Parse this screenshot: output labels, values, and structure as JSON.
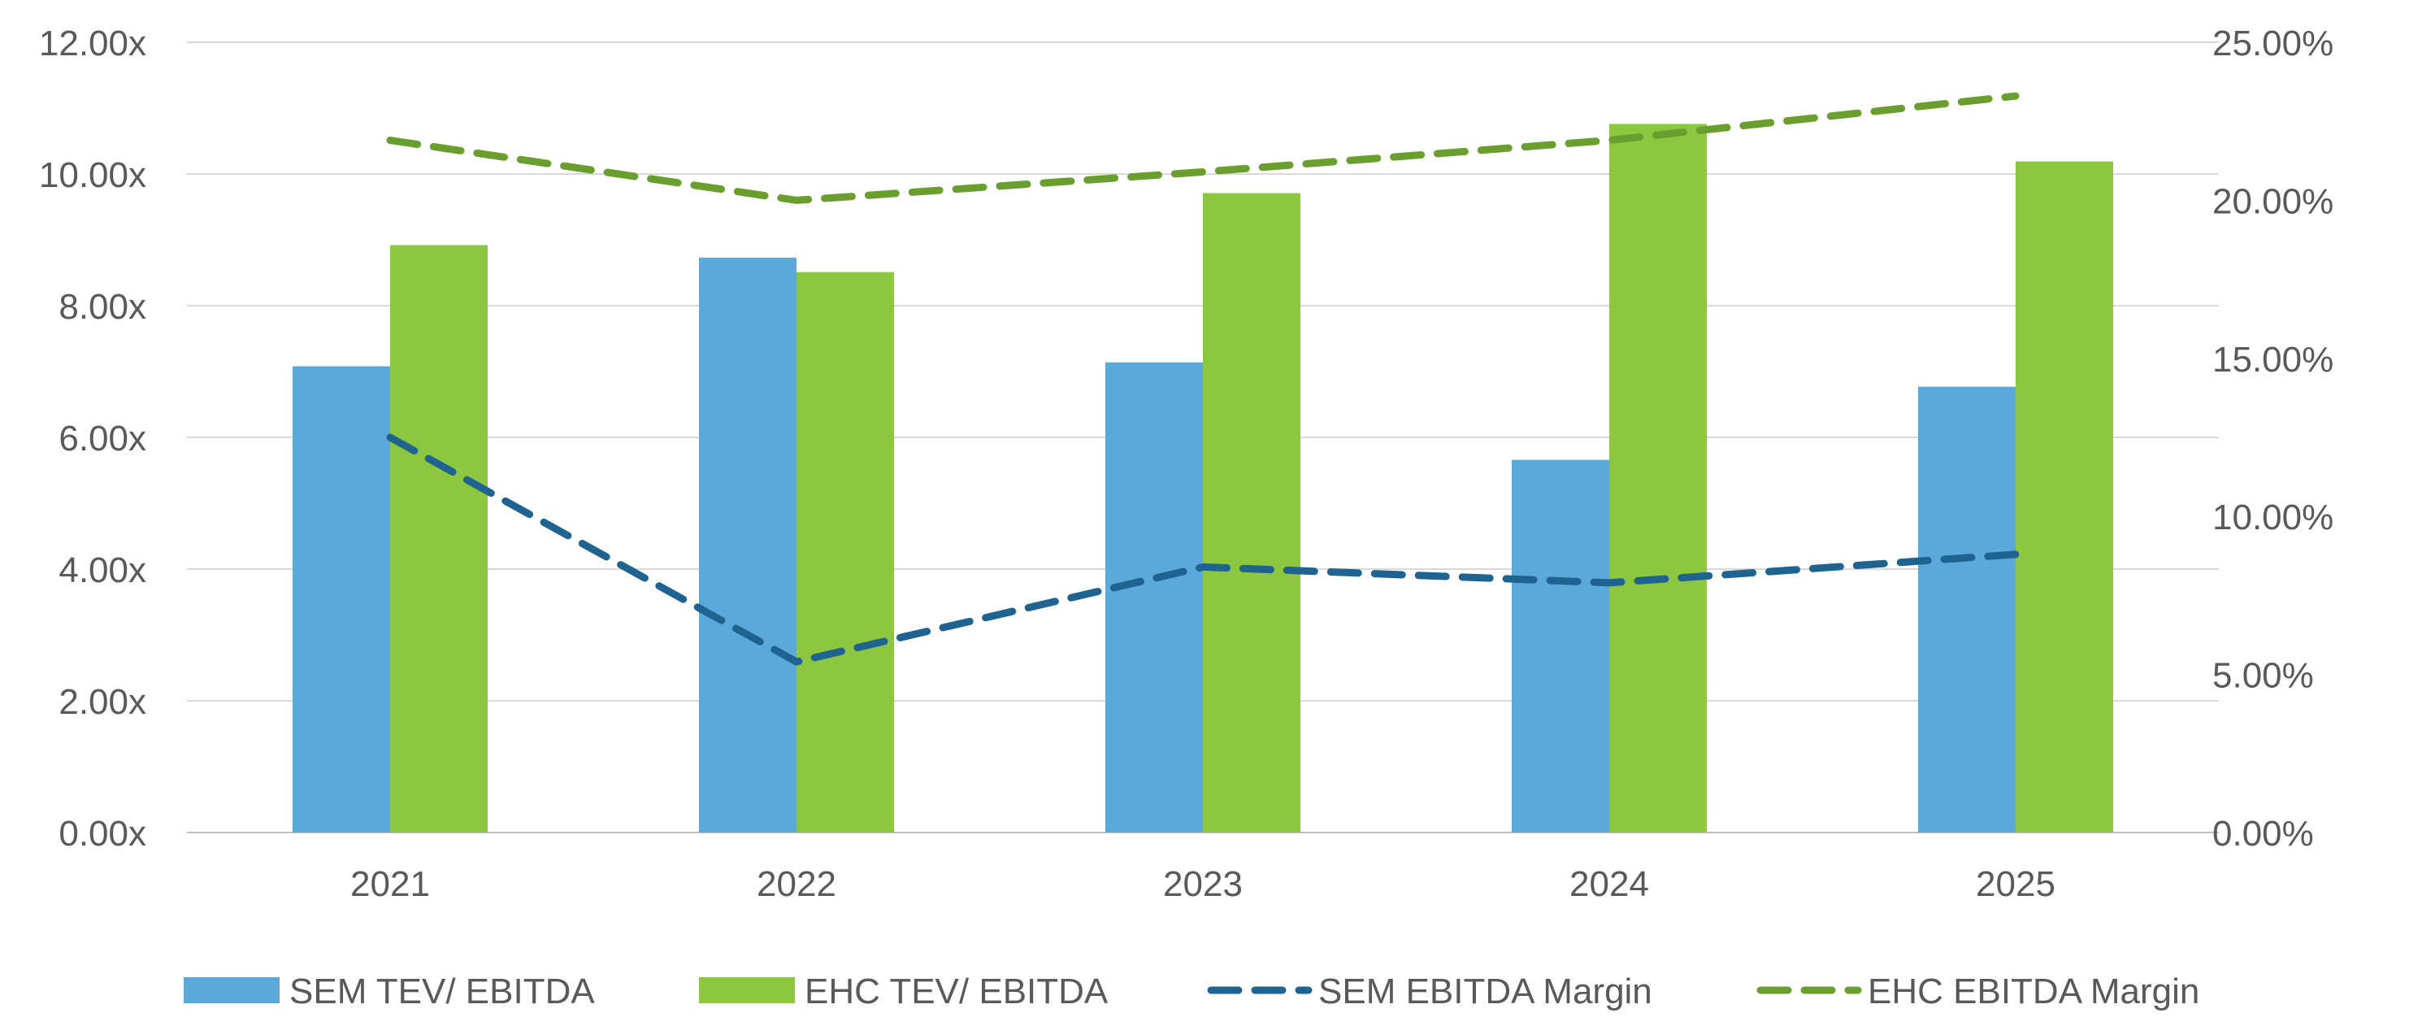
{
  "chart_data": {
    "type": "bar",
    "categories": [
      "2021",
      "2022",
      "2023",
      "2024",
      "2025"
    ],
    "y_left": {
      "min": 0,
      "max": 12,
      "step": 2,
      "tick_labels": [
        "0.00x",
        "2.00x",
        "4.00x",
        "6.00x",
        "8.00x",
        "10.00x",
        "12.00x"
      ]
    },
    "y_right": {
      "min": 0,
      "max": 25,
      "step": 5,
      "tick_labels": [
        "0.00%",
        "5.00%",
        "10.00%",
        "15.00%",
        "20.00%",
        "25.00%"
      ]
    },
    "grid": true,
    "legend_position": "bottom",
    "bar_series": [
      {
        "name": "SEM TEV/ EBITDA",
        "color": "#5BA9DB",
        "values": [
          7.08,
          8.73,
          7.14,
          5.66,
          6.77
        ]
      },
      {
        "name": "EHC TEV/ EBITDA",
        "color": "#8DC63F",
        "values": [
          8.92,
          8.51,
          9.71,
          10.76,
          10.19
        ]
      }
    ],
    "line_series": [
      {
        "name": "SEM EBITDA Margin",
        "color": "#1F6391",
        "axis": "right",
        "style": "dashed",
        "values": [
          12.5,
          5.4,
          8.4,
          7.9,
          8.8
        ]
      },
      {
        "name": "EHC EBITDA Margin",
        "color": "#6A9E2F",
        "axis": "right",
        "style": "dashed",
        "values": [
          21.9,
          20.0,
          20.9,
          21.9,
          23.3
        ]
      }
    ]
  }
}
